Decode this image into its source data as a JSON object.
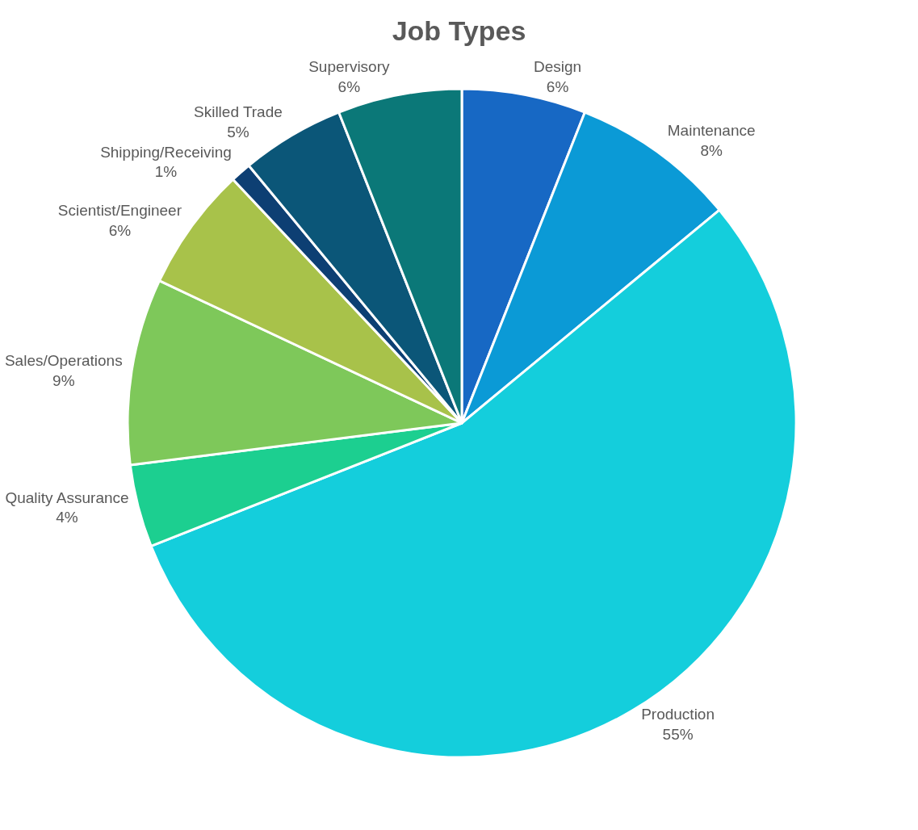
{
  "chart_data": {
    "type": "pie",
    "title": "Job Types",
    "categories": [
      "Design",
      "Maintenance",
      "Production",
      "Quality Assurance",
      "Sales/Operations",
      "Scientist/Engineer",
      "Shipping/Receiving",
      "Skilled Trade",
      "Supervisory"
    ],
    "values": [
      6,
      8,
      55,
      4,
      9,
      6,
      1,
      5,
      6
    ],
    "value_labels": [
      "6%",
      "8%",
      "55%",
      "4%",
      "9%",
      "6%",
      "1%",
      "5%",
      "6%"
    ],
    "colors": [
      "#1768c4",
      "#0b9ad6",
      "#14cedc",
      "#1ccf90",
      "#7ec85a",
      "#a8c24a",
      "#0d3f73",
      "#0b5678",
      "#0b7878"
    ],
    "legend": false
  }
}
